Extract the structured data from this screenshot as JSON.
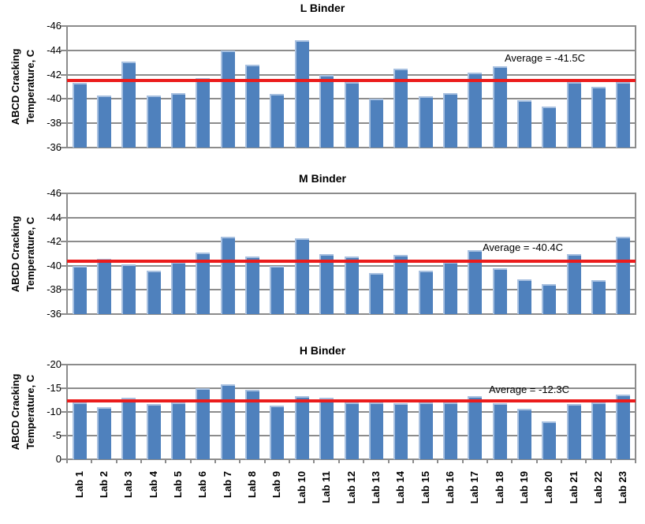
{
  "figure_title": "",
  "colors": {
    "bar_fill": "#4F81BD",
    "bar_highlight": "#A7C0E0",
    "average_line": "#EB1C1C",
    "gridline": "#8C8C8C",
    "axis": "#8C8C8C",
    "text": "#000000",
    "background": "#FFFFFF"
  },
  "chart_data": [
    {
      "type": "bar",
      "title": "L Binder",
      "ylabel_lines": [
        "ABCD Cracking",
        "Temperature, C"
      ],
      "xlabel": "",
      "categories": [
        "Lab 1",
        "Lab 2",
        "Lab 3",
        "Lab 4",
        "Lab 5",
        "Lab 6",
        "Lab 7",
        "Lab 8",
        "Lab 9",
        "Lab 10",
        "Lab 11",
        "Lab 12",
        "Lab 13",
        "Lab 14",
        "Lab 15",
        "Lab 16",
        "Lab 17",
        "Lab 18",
        "Lab 19",
        "Lab 20",
        "Lab 21",
        "Lab 22",
        "Lab 23"
      ],
      "values": [
        -41.3,
        -40.3,
        -43.1,
        -40.3,
        -40.5,
        -41.7,
        -44.0,
        -42.8,
        -40.4,
        -44.8,
        -42.0,
        -41.4,
        -40.0,
        -42.5,
        -40.2,
        -40.5,
        -42.2,
        -42.7,
        -39.9,
        -39.4,
        -41.4,
        -41.0,
        -41.4
      ],
      "average_value": -41.5,
      "annotation": "Average = -41.5C",
      "y_ticks": [
        -46,
        -44,
        -42,
        -40,
        -38,
        -36
      ],
      "ylim_top": -46,
      "ylim_bottom": -36,
      "axis_reversed": true,
      "grid": true,
      "legend": "none"
    },
    {
      "type": "bar",
      "title": "M Binder",
      "ylabel_lines": [
        "ABCD Cracking",
        "Temperature, C"
      ],
      "xlabel": "",
      "categories": [
        "Lab 1",
        "Lab 2",
        "Lab 3",
        "Lab 4",
        "Lab 5",
        "Lab 6",
        "Lab 7",
        "Lab 8",
        "Lab 9",
        "Lab 10",
        "Lab 11",
        "Lab 12",
        "Lab 13",
        "Lab 14",
        "Lab 15",
        "Lab 16",
        "Lab 17",
        "Lab 18",
        "Lab 19",
        "Lab 20",
        "Lab 21",
        "Lab 22",
        "Lab 23"
      ],
      "values": [
        -40.0,
        -40.6,
        -40.1,
        -39.6,
        -40.3,
        -41.1,
        -42.4,
        -40.8,
        -40.0,
        -42.3,
        -41.0,
        -40.8,
        -39.4,
        -40.9,
        -39.6,
        -40.3,
        -41.3,
        -39.8,
        -38.9,
        -38.5,
        -41.0,
        -38.8,
        -42.4
      ],
      "average_value": -40.4,
      "annotation": "Average = -40.4C",
      "y_ticks": [
        -46,
        -44,
        -42,
        -40,
        -38,
        -36
      ],
      "ylim_top": -46,
      "ylim_bottom": -36,
      "axis_reversed": true,
      "grid": true,
      "legend": "none"
    },
    {
      "type": "bar",
      "title": "H Binder",
      "ylabel_lines": [
        "ABCD Cracking",
        "Temperature, C"
      ],
      "xlabel": "",
      "categories": [
        "Lab 1",
        "Lab 2",
        "Lab 3",
        "Lab 4",
        "Lab 5",
        "Lab 6",
        "Lab 7",
        "Lab 8",
        "Lab 9",
        "Lab 10",
        "Lab 11",
        "Lab 12",
        "Lab 13",
        "Lab 14",
        "Lab 15",
        "Lab 16",
        "Lab 17",
        "Lab 18",
        "Lab 19",
        "Lab 20",
        "Lab 21",
        "Lab 22",
        "Lab 23"
      ],
      "values": [
        -12.0,
        -11.0,
        -13.0,
        -11.7,
        -12.0,
        -15.0,
        -15.8,
        -14.7,
        -11.3,
        -13.4,
        -13.0,
        -12.0,
        -12.0,
        -11.9,
        -12.0,
        -12.0,
        -13.4,
        -11.8,
        -10.6,
        -8.0,
        -11.6,
        -12.0,
        -13.7
      ],
      "average_value": -12.3,
      "annotation": "Average = -12.3C",
      "y_ticks": [
        -20,
        -15,
        -10,
        -5,
        0
      ],
      "ylim_top": -20,
      "ylim_bottom": 0,
      "axis_reversed": true,
      "grid": true,
      "legend": "none"
    }
  ]
}
